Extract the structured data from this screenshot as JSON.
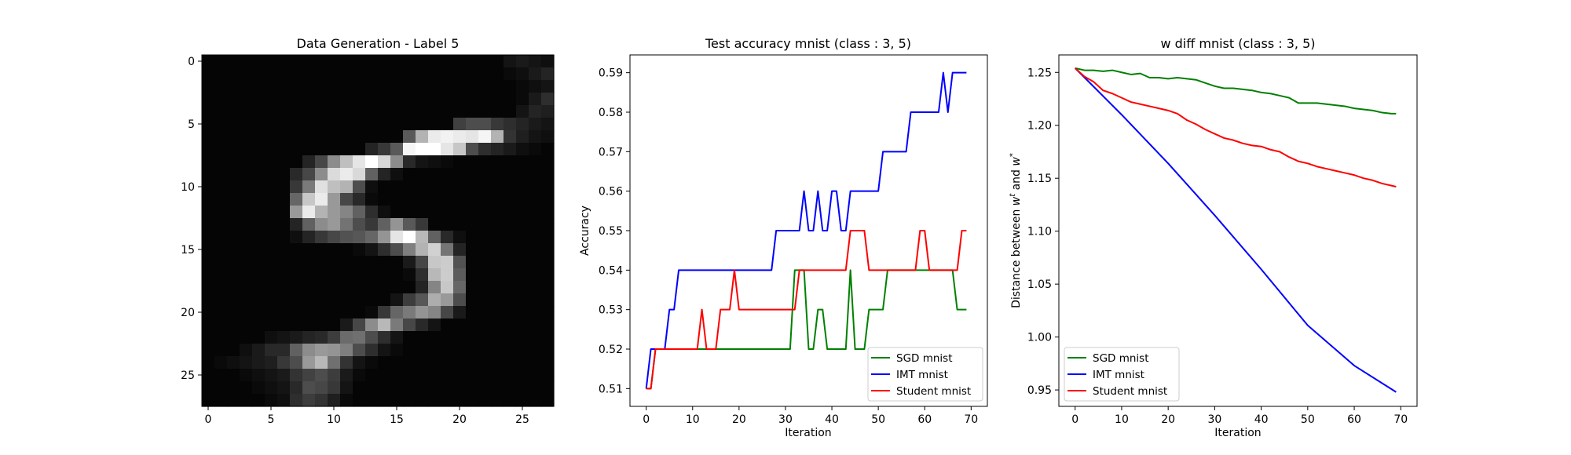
{
  "chart_data": [
    {
      "type": "heatmap",
      "title": "Data Generation - Label 5",
      "colormap": "gray",
      "xlim": [
        -0.5,
        27.5
      ],
      "ylim": [
        27.5,
        -0.5
      ],
      "xticks": [
        0,
        5,
        10,
        15,
        20,
        25
      ],
      "yticks": [
        0,
        5,
        10,
        15,
        20,
        25
      ],
      "grid": [
        [
          2,
          2,
          2,
          2,
          2,
          2,
          2,
          2,
          2,
          2,
          2,
          2,
          2,
          2,
          2,
          2,
          2,
          2,
          2,
          2,
          2,
          2,
          2,
          2,
          8,
          10,
          8,
          6
        ],
        [
          2,
          2,
          2,
          2,
          2,
          2,
          2,
          2,
          2,
          2,
          2,
          2,
          2,
          2,
          2,
          2,
          2,
          2,
          2,
          2,
          2,
          2,
          2,
          2,
          4,
          6,
          10,
          14
        ],
        [
          2,
          2,
          2,
          2,
          2,
          2,
          2,
          2,
          2,
          2,
          2,
          2,
          2,
          2,
          2,
          2,
          2,
          2,
          2,
          2,
          2,
          2,
          2,
          2,
          2,
          4,
          6,
          8
        ],
        [
          2,
          2,
          2,
          2,
          2,
          2,
          2,
          2,
          2,
          2,
          2,
          2,
          2,
          2,
          2,
          2,
          2,
          2,
          2,
          2,
          2,
          2,
          2,
          2,
          2,
          4,
          10,
          18
        ],
        [
          2,
          2,
          2,
          2,
          2,
          2,
          2,
          2,
          2,
          2,
          2,
          2,
          2,
          2,
          2,
          2,
          2,
          2,
          2,
          2,
          2,
          2,
          2,
          2,
          2,
          8,
          14,
          12
        ],
        [
          2,
          2,
          2,
          2,
          2,
          2,
          2,
          2,
          2,
          2,
          2,
          2,
          2,
          2,
          2,
          2,
          2,
          2,
          2,
          2,
          25,
          30,
          30,
          22,
          18,
          14,
          10,
          8
        ],
        [
          2,
          2,
          2,
          2,
          2,
          2,
          2,
          2,
          2,
          2,
          2,
          2,
          2,
          2,
          2,
          2,
          35,
          70,
          92,
          95,
          92,
          90,
          96,
          70,
          20,
          12,
          8,
          6
        ],
        [
          2,
          2,
          2,
          2,
          2,
          2,
          2,
          2,
          2,
          2,
          2,
          2,
          2,
          14,
          22,
          35,
          96,
          100,
          100,
          90,
          78,
          30,
          18,
          14,
          10,
          6,
          4,
          2
        ],
        [
          2,
          2,
          2,
          2,
          2,
          2,
          2,
          2,
          14,
          28,
          55,
          75,
          90,
          100,
          84,
          55,
          16,
          8,
          6,
          4,
          2,
          2,
          2,
          2,
          2,
          2,
          2,
          2
        ],
        [
          2,
          2,
          2,
          2,
          2,
          2,
          2,
          16,
          28,
          55,
          86,
          92,
          85,
          38,
          14,
          6,
          2,
          2,
          2,
          2,
          2,
          2,
          2,
          2,
          2,
          2,
          2,
          2
        ],
        [
          2,
          2,
          2,
          2,
          2,
          2,
          2,
          22,
          48,
          88,
          75,
          70,
          30,
          6,
          2,
          2,
          2,
          2,
          2,
          2,
          2,
          2,
          2,
          2,
          2,
          2,
          2,
          2
        ],
        [
          2,
          2,
          2,
          2,
          2,
          2,
          2,
          40,
          78,
          92,
          60,
          28,
          16,
          4,
          2,
          2,
          2,
          2,
          2,
          2,
          2,
          2,
          2,
          2,
          2,
          2,
          2,
          2
        ],
        [
          2,
          2,
          2,
          2,
          2,
          2,
          2,
          60,
          92,
          70,
          60,
          52,
          38,
          18,
          6,
          2,
          2,
          2,
          2,
          2,
          2,
          2,
          2,
          2,
          2,
          2,
          2,
          2
        ],
        [
          2,
          2,
          2,
          2,
          2,
          2,
          2,
          14,
          38,
          55,
          60,
          45,
          30,
          22,
          38,
          58,
          35,
          22,
          2,
          2,
          2,
          2,
          2,
          2,
          2,
          2,
          2,
          2
        ],
        [
          2,
          2,
          2,
          2,
          2,
          2,
          2,
          6,
          14,
          22,
          28,
          32,
          34,
          40,
          58,
          90,
          100,
          72,
          38,
          16,
          6,
          2,
          2,
          2,
          2,
          2,
          2,
          2
        ],
        [
          2,
          2,
          2,
          2,
          2,
          2,
          2,
          2,
          2,
          2,
          2,
          2,
          4,
          8,
          18,
          30,
          50,
          70,
          82,
          46,
          14,
          2,
          2,
          2,
          2,
          2,
          2,
          2
        ],
        [
          2,
          2,
          2,
          2,
          2,
          2,
          2,
          2,
          2,
          2,
          2,
          2,
          2,
          2,
          2,
          2,
          10,
          28,
          78,
          80,
          32,
          2,
          2,
          2,
          2,
          2,
          2,
          2
        ],
        [
          2,
          2,
          2,
          2,
          2,
          2,
          2,
          2,
          2,
          2,
          2,
          2,
          2,
          2,
          2,
          2,
          4,
          18,
          72,
          80,
          36,
          2,
          2,
          2,
          2,
          2,
          2,
          2
        ],
        [
          2,
          2,
          2,
          2,
          2,
          2,
          2,
          2,
          2,
          2,
          2,
          2,
          2,
          2,
          2,
          2,
          2,
          14,
          52,
          78,
          40,
          2,
          2,
          2,
          2,
          2,
          2,
          2
        ],
        [
          2,
          2,
          2,
          2,
          2,
          2,
          2,
          2,
          2,
          2,
          2,
          2,
          2,
          2,
          2,
          8,
          24,
          34,
          68,
          60,
          30,
          2,
          2,
          2,
          2,
          2,
          2,
          2
        ],
        [
          2,
          2,
          2,
          2,
          2,
          2,
          2,
          2,
          2,
          2,
          2,
          2,
          2,
          4,
          22,
          40,
          48,
          58,
          52,
          28,
          10,
          2,
          2,
          2,
          2,
          2,
          2,
          2
        ],
        [
          2,
          2,
          2,
          2,
          2,
          2,
          2,
          2,
          2,
          2,
          2,
          10,
          28,
          55,
          72,
          48,
          28,
          16,
          8,
          2,
          2,
          2,
          2,
          2,
          2,
          2,
          2,
          2
        ],
        [
          2,
          2,
          2,
          2,
          2,
          6,
          8,
          10,
          14,
          16,
          24,
          42,
          44,
          30,
          18,
          8,
          2,
          2,
          2,
          2,
          2,
          2,
          2,
          2,
          2,
          2,
          2,
          2
        ],
        [
          2,
          2,
          2,
          6,
          10,
          16,
          16,
          38,
          55,
          60,
          58,
          50,
          30,
          18,
          8,
          4,
          2,
          2,
          2,
          2,
          2,
          2,
          2,
          2,
          2,
          2,
          2,
          2
        ],
        [
          2,
          4,
          6,
          8,
          10,
          12,
          22,
          30,
          60,
          72,
          44,
          20,
          8,
          4,
          2,
          2,
          2,
          2,
          2,
          2,
          2,
          2,
          2,
          2,
          2,
          2,
          2,
          2
        ],
        [
          2,
          2,
          2,
          4,
          6,
          8,
          10,
          20,
          26,
          30,
          24,
          10,
          4,
          2,
          2,
          2,
          2,
          2,
          2,
          2,
          2,
          2,
          2,
          2,
          2,
          2,
          2,
          2
        ],
        [
          2,
          2,
          2,
          2,
          4,
          6,
          8,
          16,
          30,
          28,
          22,
          8,
          2,
          2,
          2,
          2,
          2,
          2,
          2,
          2,
          2,
          2,
          2,
          2,
          2,
          2,
          2,
          2
        ],
        [
          2,
          2,
          2,
          2,
          2,
          4,
          6,
          18,
          24,
          20,
          12,
          4,
          2,
          2,
          2,
          2,
          2,
          2,
          2,
          2,
          2,
          2,
          2,
          2,
          2,
          2,
          2,
          2
        ]
      ]
    },
    {
      "type": "line",
      "title": "Test accuracy mnist (class : 3, 5)",
      "xlabel": "Iteration",
      "ylabel": "Accuracy",
      "xlim": [
        -3.5,
        73.5
      ],
      "ylim": [
        0.5055,
        0.5945
      ],
      "xticks": [
        0,
        10,
        20,
        30,
        40,
        50,
        60,
        70
      ],
      "yticks": [
        0.51,
        0.52,
        0.53,
        0.54,
        0.55,
        0.56,
        0.57,
        0.58,
        0.59
      ],
      "legend_position": "lower-right",
      "series": [
        {
          "name": "SGD mnist",
          "color": "#008000",
          "x": [
            0,
            1,
            2,
            31,
            32,
            34,
            35,
            36,
            37,
            38,
            39,
            43,
            44,
            45,
            47,
            48,
            51,
            52,
            66,
            67,
            69
          ],
          "y": [
            0.51,
            0.51,
            0.52,
            0.52,
            0.54,
            0.54,
            0.52,
            0.52,
            0.53,
            0.53,
            0.52,
            0.52,
            0.54,
            0.52,
            0.52,
            0.53,
            0.53,
            0.54,
            0.54,
            0.53,
            0.53
          ]
        },
        {
          "name": "IMT mnist",
          "color": "#0000ff",
          "x": [
            0,
            1,
            4,
            5,
            6,
            7,
            27,
            28,
            33,
            34,
            35,
            36,
            37,
            38,
            39,
            40,
            41,
            42,
            43,
            44,
            50,
            51,
            56,
            57,
            63,
            64,
            65,
            66,
            69
          ],
          "y": [
            0.51,
            0.52,
            0.52,
            0.53,
            0.53,
            0.54,
            0.54,
            0.55,
            0.55,
            0.56,
            0.55,
            0.55,
            0.56,
            0.55,
            0.55,
            0.56,
            0.56,
            0.55,
            0.55,
            0.56,
            0.56,
            0.57,
            0.57,
            0.58,
            0.58,
            0.59,
            0.58,
            0.59,
            0.59
          ]
        },
        {
          "name": "Student mnist",
          "color": "#ff0000",
          "x": [
            0,
            1,
            2,
            11,
            12,
            13,
            15,
            16,
            17,
            18,
            19,
            20,
            32,
            33,
            43,
            44,
            47,
            48,
            58,
            59,
            60,
            61,
            67,
            68,
            69
          ],
          "y": [
            0.51,
            0.51,
            0.52,
            0.52,
            0.53,
            0.52,
            0.52,
            0.53,
            0.53,
            0.53,
            0.54,
            0.53,
            0.53,
            0.54,
            0.54,
            0.55,
            0.55,
            0.54,
            0.54,
            0.55,
            0.55,
            0.54,
            0.54,
            0.55,
            0.55
          ]
        }
      ]
    },
    {
      "type": "line",
      "title": "w diff mnist (class : 3, 5)",
      "xlabel": "Iteration",
      "ylabel": "Distance between w^t and w^*",
      "ylabel_parts": {
        "before": "Distance between ",
        "w": "w",
        "t": "t",
        "and": " and ",
        "star": "*"
      },
      "xlim": [
        -3.5,
        73.5
      ],
      "ylim": [
        0.9345,
        1.2665
      ],
      "xticks": [
        0,
        10,
        20,
        30,
        40,
        50,
        60,
        70
      ],
      "yticks": [
        0.95,
        1.0,
        1.05,
        1.1,
        1.15,
        1.2,
        1.25
      ],
      "legend_position": "lower-left",
      "series": [
        {
          "name": "SGD mnist",
          "color": "#008000",
          "x": [
            0,
            2,
            4,
            6,
            8,
            10,
            12,
            14,
            16,
            18,
            20,
            22,
            24,
            26,
            28,
            30,
            32,
            34,
            36,
            38,
            40,
            42,
            44,
            46,
            48,
            50,
            52,
            54,
            56,
            58,
            60,
            62,
            64,
            66,
            68,
            69
          ],
          "y": [
            1.254,
            1.252,
            1.252,
            1.251,
            1.252,
            1.25,
            1.248,
            1.249,
            1.245,
            1.245,
            1.244,
            1.245,
            1.244,
            1.243,
            1.24,
            1.237,
            1.235,
            1.235,
            1.234,
            1.233,
            1.231,
            1.23,
            1.228,
            1.226,
            1.221,
            1.221,
            1.221,
            1.22,
            1.219,
            1.218,
            1.216,
            1.215,
            1.214,
            1.212,
            1.211,
            1.211
          ]
        },
        {
          "name": "IMT mnist",
          "color": "#0000ff",
          "x": [
            0,
            10,
            20,
            30,
            40,
            50,
            60,
            69
          ],
          "y": [
            1.254,
            1.21,
            1.164,
            1.115,
            1.064,
            1.011,
            0.973,
            0.948
          ]
        },
        {
          "name": "Student mnist",
          "color": "#ff0000",
          "x": [
            0,
            2,
            4,
            6,
            8,
            10,
            12,
            14,
            16,
            18,
            20,
            22,
            24,
            26,
            28,
            30,
            32,
            34,
            36,
            38,
            40,
            42,
            44,
            46,
            48,
            50,
            52,
            54,
            56,
            58,
            60,
            62,
            64,
            66,
            68,
            69
          ],
          "y": [
            1.254,
            1.246,
            1.241,
            1.233,
            1.23,
            1.226,
            1.222,
            1.22,
            1.218,
            1.216,
            1.214,
            1.211,
            1.205,
            1.201,
            1.196,
            1.192,
            1.188,
            1.186,
            1.183,
            1.181,
            1.18,
            1.177,
            1.175,
            1.17,
            1.166,
            1.164,
            1.161,
            1.159,
            1.157,
            1.155,
            1.153,
            1.15,
            1.148,
            1.145,
            1.143,
            1.142
          ]
        }
      ]
    }
  ]
}
